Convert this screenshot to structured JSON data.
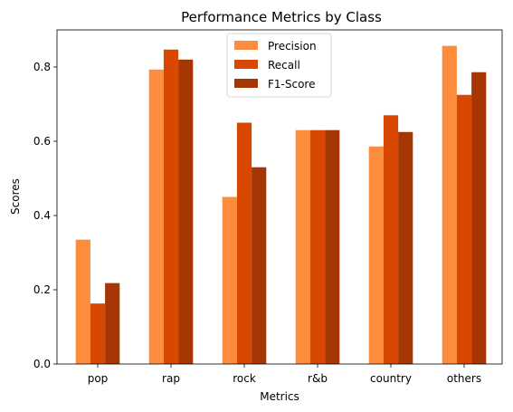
{
  "chart_data": {
    "type": "bar",
    "title": "Performance Metrics by Class",
    "xlabel": "Metrics",
    "ylabel": "Scores",
    "categories": [
      "pop",
      "rap",
      "rock",
      "r&b",
      "country",
      "others"
    ],
    "series": [
      {
        "name": "Precision",
        "color": "#fd8d3c",
        "values": [
          0.335,
          0.793,
          0.45,
          0.63,
          0.586,
          0.857
        ]
      },
      {
        "name": "Recall",
        "color": "#d94801",
        "values": [
          0.163,
          0.847,
          0.65,
          0.63,
          0.67,
          0.725
        ]
      },
      {
        "name": "F1-Score",
        "color": "#a63603",
        "values": [
          0.218,
          0.82,
          0.53,
          0.63,
          0.625,
          0.786
        ]
      }
    ],
    "ylim": [
      0,
      0.9
    ],
    "yticks": [
      0.0,
      0.2,
      0.4,
      0.6,
      0.8
    ],
    "ytick_labels": [
      "0.0",
      "0.2",
      "0.4",
      "0.6",
      "0.8"
    ],
    "grid": false,
    "legend_position": "top-center"
  }
}
